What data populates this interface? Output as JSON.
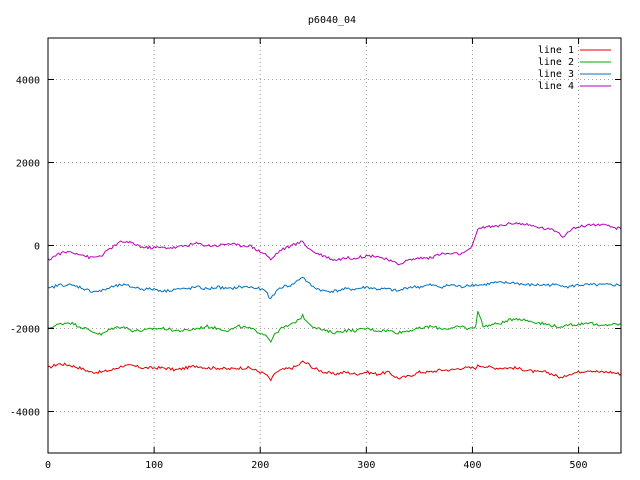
{
  "chart_data": {
    "type": "line",
    "title": "p6040_04",
    "xlabel": "",
    "ylabel": "",
    "xlim": [
      0,
      540
    ],
    "ylim": [
      -5000,
      5000
    ],
    "xticks": [
      0,
      100,
      200,
      300,
      400,
      500
    ],
    "yticks": [
      -4000,
      -2000,
      0,
      2000,
      4000
    ],
    "grid": true,
    "legend_position": "top-right",
    "x": [
      0,
      10,
      20,
      30,
      40,
      50,
      60,
      70,
      80,
      90,
      100,
      110,
      120,
      130,
      140,
      150,
      160,
      170,
      180,
      190,
      200,
      205,
      210,
      215,
      220,
      230,
      235,
      240,
      245,
      250,
      260,
      270,
      280,
      290,
      300,
      310,
      320,
      330,
      340,
      350,
      360,
      370,
      380,
      390,
      395,
      400,
      403,
      405,
      410,
      420,
      430,
      440,
      450,
      460,
      470,
      480,
      485,
      490,
      500,
      510,
      520,
      530,
      540
    ],
    "series": [
      {
        "name": "line 1",
        "color": "#dd0000",
        "values": [
          -2950,
          -2850,
          -2880,
          -2950,
          -3050,
          -3050,
          -3000,
          -2900,
          -2900,
          -2950,
          -2950,
          -2950,
          -3000,
          -2950,
          -2900,
          -2950,
          -2950,
          -2980,
          -2950,
          -2950,
          -3050,
          -3100,
          -3250,
          -3050,
          -3000,
          -2950,
          -2900,
          -2800,
          -2850,
          -2950,
          -3050,
          -3100,
          -3050,
          -3100,
          -3050,
          -3100,
          -3050,
          -3200,
          -3150,
          -3050,
          -3050,
          -3000,
          -3000,
          -2950,
          -2950,
          -2950,
          -2950,
          -2900,
          -2900,
          -2950,
          -2950,
          -2950,
          -3000,
          -3050,
          -3050,
          -3150,
          -3200,
          -3100,
          -3050,
          -3000,
          -3050,
          -3050,
          -3100
        ]
      },
      {
        "name": "line 2",
        "color": "#00aa00",
        "values": [
          -2000,
          -1900,
          -1850,
          -1950,
          -2050,
          -2150,
          -2000,
          -1950,
          -2050,
          -2050,
          -2000,
          -2000,
          -2050,
          -2050,
          -2000,
          -1950,
          -2000,
          -2050,
          -1950,
          -2000,
          -2100,
          -2150,
          -2300,
          -2100,
          -2000,
          -1900,
          -1800,
          -1700,
          -1850,
          -1950,
          -2050,
          -2100,
          -2050,
          -2050,
          -2000,
          -2050,
          -2050,
          -2100,
          -2050,
          -2000,
          -1950,
          -2000,
          -2000,
          -1950,
          -2000,
          -2000,
          -1950,
          -1550,
          -1950,
          -1900,
          -1850,
          -1750,
          -1800,
          -1850,
          -1900,
          -1950,
          -2000,
          -1900,
          -1900,
          -1850,
          -1950,
          -1900,
          -1900
        ]
      },
      {
        "name": "line 3",
        "color": "#0070c0",
        "values": [
          -1050,
          -950,
          -950,
          -1000,
          -1100,
          -1100,
          -1000,
          -950,
          -1000,
          -1050,
          -1050,
          -1100,
          -1050,
          -1050,
          -1000,
          -1050,
          -1000,
          -1050,
          -1000,
          -1000,
          -1050,
          -1100,
          -1300,
          -1100,
          -1000,
          -950,
          -850,
          -750,
          -900,
          -1000,
          -1100,
          -1100,
          -1050,
          -1050,
          -1000,
          -1050,
          -1050,
          -1100,
          -1000,
          -1000,
          -950,
          -1000,
          -950,
          -1000,
          -950,
          -950,
          -950,
          -950,
          -950,
          -900,
          -900,
          -900,
          -950,
          -950,
          -950,
          -950,
          -950,
          -1000,
          -950,
          -950,
          -950,
          -950,
          -950
        ]
      },
      {
        "name": "line 4",
        "color": "#bb00bb",
        "values": [
          -350,
          -200,
          -150,
          -200,
          -300,
          -250,
          -50,
          100,
          50,
          -50,
          -50,
          -50,
          -50,
          0,
          50,
          0,
          0,
          50,
          0,
          0,
          -150,
          -200,
          -350,
          -200,
          -100,
          0,
          50,
          100,
          -50,
          -150,
          -250,
          -350,
          -300,
          -300,
          -250,
          -250,
          -350,
          -450,
          -350,
          -300,
          -300,
          -200,
          -200,
          -200,
          -150,
          0,
          200,
          400,
          450,
          450,
          500,
          550,
          500,
          450,
          400,
          350,
          200,
          350,
          450,
          500,
          500,
          450,
          400
        ]
      }
    ]
  }
}
